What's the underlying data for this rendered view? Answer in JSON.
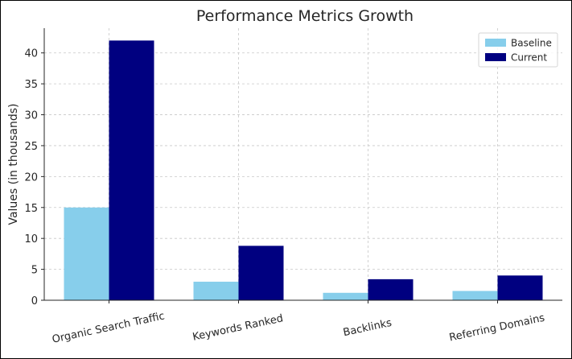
{
  "chart_data": {
    "type": "bar",
    "title": "Performance Metrics Growth",
    "xlabel": "",
    "ylabel": "Values (in thousands)",
    "categories": [
      "Organic Search Traffic",
      "Keywords Ranked",
      "Backlinks",
      "Referring Domains"
    ],
    "series": [
      {
        "name": "Baseline",
        "color": "#87ceeb",
        "values": [
          15,
          3,
          1.2,
          1.5
        ]
      },
      {
        "name": "Current",
        "color": "#000080",
        "values": [
          42,
          8.8,
          3.4,
          4
        ]
      }
    ],
    "ylim": [
      0,
      44
    ],
    "yticks": [
      0,
      5,
      10,
      15,
      20,
      25,
      30,
      35,
      40
    ],
    "grid": true,
    "legend_position": "top-right"
  }
}
